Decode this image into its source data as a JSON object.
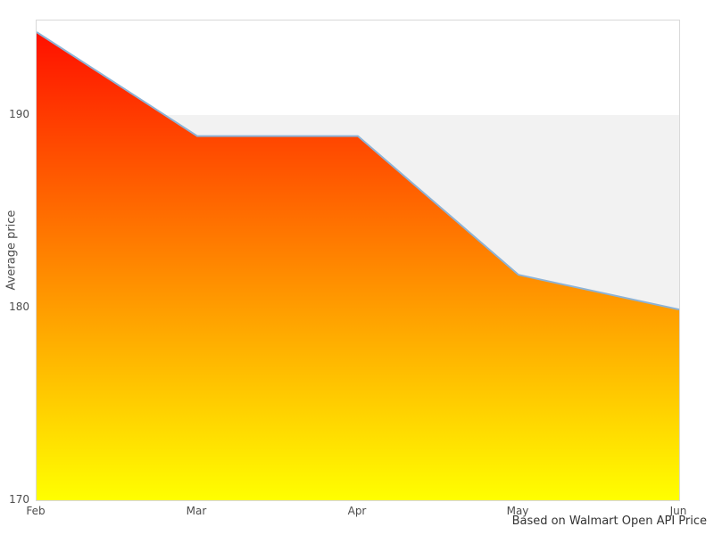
{
  "chart_data": {
    "type": "area",
    "x": [
      "Feb",
      "Mar",
      "Apr",
      "May",
      "Jun"
    ],
    "values": [
      194.3,
      188.9,
      188.9,
      181.7,
      179.9
    ],
    "title": "",
    "xlabel": "",
    "ylabel": "Average price",
    "ylim": [
      170,
      194.9
    ],
    "yticks": [
      170,
      180,
      190
    ],
    "grid": "off",
    "legend": "none",
    "caption": "Based on Walmart Open API Price",
    "colors": {
      "fill_gradient_top": "#ff0a00",
      "fill_gradient_bottom": "#ffff00",
      "line": "#8db3d6",
      "band_above_190": "#ffffff",
      "band_below_190": "#f2f2f2",
      "plot_border": "#d9d9d9",
      "tick_text": "#4d4d4d",
      "caption_text": "#333333"
    },
    "band_threshold": 190
  },
  "axes": {
    "ylabel": "Average price",
    "yticks_display": [
      "190",
      "180",
      "170"
    ],
    "xticks_display": [
      "Feb",
      "Mar",
      "Apr",
      "May",
      "Jun"
    ]
  },
  "footer": {
    "caption": "Based on Walmart Open API Price"
  }
}
